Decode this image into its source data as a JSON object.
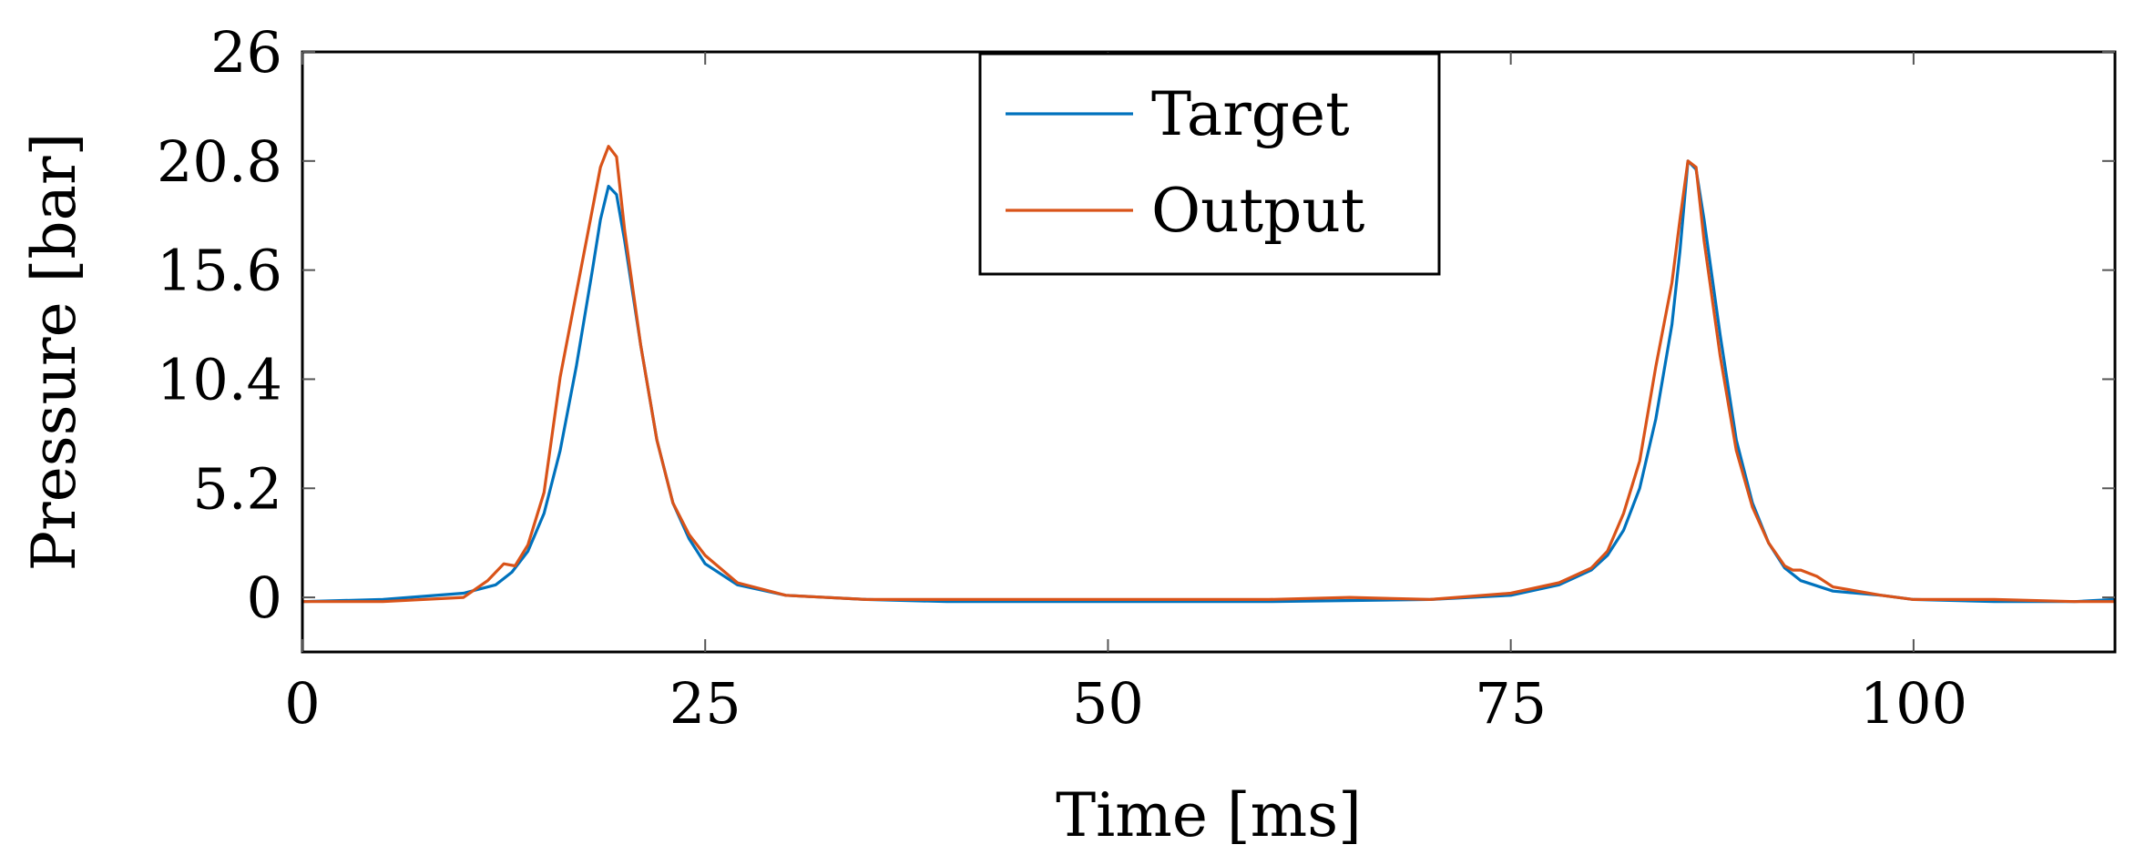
{
  "chart_data": {
    "type": "line",
    "title": "",
    "xlabel": "Time [ms]",
    "ylabel": "Pressure [bar]",
    "xlim": [
      0,
      112.5
    ],
    "ylim": [
      -2.6,
      26
    ],
    "xticks": [
      0,
      25,
      50,
      75,
      100
    ],
    "xtick_labels": [
      "0",
      "25",
      "50",
      "75",
      "100"
    ],
    "yticks": [
      0,
      5.2,
      10.4,
      15.6,
      20.8,
      26
    ],
    "ytick_labels": [
      "0",
      "5.2",
      "10.4",
      "15.6",
      "20.8",
      "26"
    ],
    "grid": false,
    "legend_position": "top-center",
    "series": [
      {
        "name": "Target",
        "color": "#0072BD",
        "x": [
          0,
          5,
          10,
          12,
          13,
          14,
          15,
          16,
          17,
          18,
          18.5,
          19,
          19.5,
          20,
          21,
          22,
          23,
          24,
          25,
          27,
          30,
          35,
          40,
          50,
          60,
          70,
          75,
          78,
          80,
          81,
          82,
          83,
          84,
          85,
          85.5,
          86,
          86.5,
          87,
          88,
          89,
          90,
          91,
          92,
          93,
          95,
          98,
          100,
          105,
          110,
          112.5
        ],
        "y": [
          -0.2,
          -0.1,
          0.2,
          0.6,
          1.2,
          2.2,
          4.0,
          7.0,
          11.0,
          15.6,
          18.0,
          19.6,
          19.2,
          17.0,
          12.0,
          7.5,
          4.5,
          2.8,
          1.6,
          0.6,
          0.1,
          -0.1,
          -0.2,
          -0.2,
          -0.2,
          -0.1,
          0.1,
          0.6,
          1.3,
          2.0,
          3.2,
          5.2,
          8.5,
          13.0,
          16.5,
          20.8,
          20.4,
          18.0,
          12.5,
          7.5,
          4.5,
          2.6,
          1.4,
          0.8,
          0.3,
          0.1,
          -0.1,
          -0.2,
          -0.2,
          -0.1
        ]
      },
      {
        "name": "Output",
        "color": "#D95319",
        "x": [
          0,
          5,
          10,
          11.5,
          12.5,
          13.2,
          14,
          15,
          16,
          17,
          18,
          18.5,
          19,
          19.5,
          20,
          21,
          22,
          23,
          24,
          25,
          27,
          30,
          35,
          40,
          50,
          60,
          65,
          70,
          75,
          78,
          80,
          81,
          82,
          83,
          84,
          85,
          85.5,
          86,
          86.5,
          87,
          88,
          89,
          90,
          91,
          92,
          92.5,
          93,
          94,
          95,
          98,
          100,
          105,
          110,
          112.5
        ],
        "y": [
          -0.2,
          -0.2,
          0,
          0.8,
          1.6,
          1.5,
          2.5,
          5.0,
          10.5,
          14.5,
          18.5,
          20.5,
          21.5,
          21.0,
          17.5,
          12.0,
          7.5,
          4.5,
          3.0,
          2.0,
          0.7,
          0.1,
          -0.1,
          -0.1,
          -0.1,
          -0.1,
          0.0,
          -0.1,
          0.2,
          0.7,
          1.4,
          2.2,
          4.0,
          6.5,
          11.0,
          15.0,
          18.0,
          20.8,
          20.5,
          17.0,
          11.5,
          7.0,
          4.3,
          2.6,
          1.5,
          1.3,
          1.3,
          1.0,
          0.5,
          0.1,
          -0.1,
          -0.1,
          -0.2,
          -0.2
        ]
      }
    ]
  }
}
